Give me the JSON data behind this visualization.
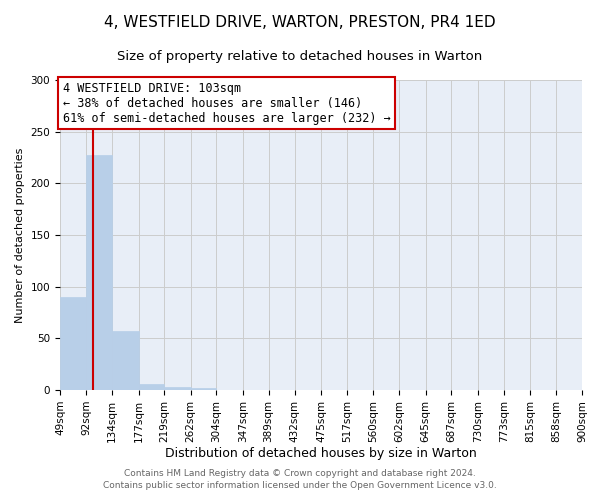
{
  "title": "4, WESTFIELD DRIVE, WARTON, PRESTON, PR4 1ED",
  "subtitle": "Size of property relative to detached houses in Warton",
  "xlabel": "Distribution of detached houses by size in Warton",
  "ylabel": "Number of detached properties",
  "bar_edges": [
    49,
    92,
    134,
    177,
    219,
    262,
    304,
    347,
    389,
    432,
    475,
    517,
    560,
    602,
    645,
    687,
    730,
    773,
    815,
    858,
    900
  ],
  "bar_heights": [
    90,
    227,
    57,
    6,
    3,
    2,
    0,
    0,
    0,
    0,
    0,
    0,
    0,
    0,
    0,
    0,
    0,
    0,
    0,
    0
  ],
  "bar_color": "#b8cfe8",
  "bar_edgecolor": "#b8cfe8",
  "property_line_x": 103,
  "property_line_color": "#cc0000",
  "annotation_line1": "4 WESTFIELD DRIVE: 103sqm",
  "annotation_line2": "← 38% of detached houses are smaller (146)",
  "annotation_line3": "61% of semi-detached houses are larger (232) →",
  "annotation_box_facecolor": "#ffffff",
  "annotation_box_edgecolor": "#cc0000",
  "annotation_fontsize": 8.5,
  "ylim": [
    0,
    300
  ],
  "yticks": [
    0,
    50,
    100,
    150,
    200,
    250,
    300
  ],
  "grid_color": "#cccccc",
  "bg_color": "#e8eef7",
  "footer_line1": "Contains HM Land Registry data © Crown copyright and database right 2024.",
  "footer_line2": "Contains public sector information licensed under the Open Government Licence v3.0.",
  "title_fontsize": 11,
  "subtitle_fontsize": 9.5,
  "xlabel_fontsize": 9,
  "ylabel_fontsize": 8,
  "tick_fontsize": 7.5,
  "footer_fontsize": 6.5
}
